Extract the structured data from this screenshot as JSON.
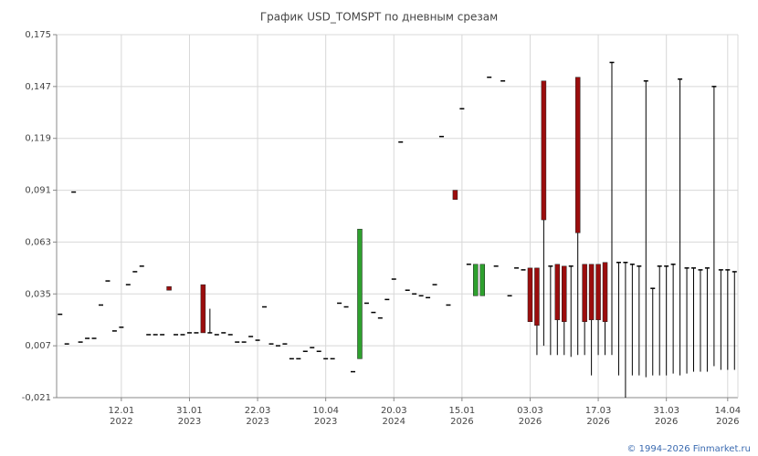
{
  "chart_data": {
    "type": "candlestick",
    "title": "График USD_TOMSPT по дневным срезам",
    "footer": "© 1994–2026 Finmarket.ru",
    "categories": [
      null,
      null,
      null,
      null,
      null,
      null,
      null,
      null,
      null,
      [
        "12.01",
        "2022"
      ],
      null,
      null,
      null,
      null,
      null,
      null,
      null,
      null,
      null,
      [
        "31.01",
        "2023"
      ],
      null,
      null,
      null,
      null,
      null,
      null,
      null,
      null,
      null,
      [
        "22.03",
        "2023"
      ],
      null,
      null,
      null,
      null,
      null,
      null,
      null,
      null,
      null,
      [
        "10.04",
        "2023"
      ],
      null,
      null,
      null,
      null,
      null,
      null,
      null,
      null,
      null,
      [
        "20.03",
        "2024"
      ],
      null,
      null,
      null,
      null,
      null,
      null,
      null,
      null,
      null,
      [
        "15.01",
        "2026"
      ],
      null,
      null,
      null,
      null,
      null,
      null,
      null,
      null,
      null,
      [
        "03.03",
        "2026"
      ],
      null,
      null,
      null,
      null,
      null,
      null,
      null,
      null,
      null,
      [
        "17.03",
        "2026"
      ],
      null,
      null,
      null,
      null,
      null,
      null,
      null,
      null,
      null,
      [
        "31.03",
        "2026"
      ],
      null,
      null,
      null,
      null,
      null,
      null,
      null,
      null,
      [
        "14.04",
        "2026"
      ],
      null
    ],
    "open": [
      0.024,
      0.008,
      0.09,
      0.009,
      0.011,
      0.011,
      0.029,
      0.042,
      0.015,
      0.017,
      0.04,
      0.047,
      0.05,
      0.013,
      0.013,
      0.013,
      0.039,
      0.013,
      0.013,
      0.014,
      0.014,
      0.04,
      0.014,
      0.013,
      0.014,
      0.013,
      0.009,
      0.009,
      0.012,
      0.01,
      0.028,
      0.008,
      0.007,
      0.008,
      0,
      0,
      0.004,
      0.006,
      0.004,
      0,
      0,
      0.03,
      0.028,
      -0.007,
      0,
      0.03,
      0.025,
      0.022,
      0.032,
      0.043,
      0.117,
      0.037,
      0.035,
      0.034,
      0.033,
      0.04,
      0.12,
      0.029,
      0.091,
      0.135,
      0.051,
      0.034,
      0.034,
      0.152,
      0.05,
      0.15,
      0.034,
      0.049,
      0.048,
      0.049,
      0.049,
      0.15,
      0.05,
      0.051,
      0.05,
      0.05,
      0.152,
      0.051,
      0.051,
      0.051,
      0.052,
      0.16,
      0.052,
      0.052,
      0.051,
      0.05,
      0.15,
      0.038,
      0.05,
      0.05,
      0.051,
      0.151,
      0.049,
      0.049,
      0.048,
      0.049,
      0.147,
      0.048,
      0.048,
      0.047
    ],
    "high": [
      0.024,
      0.008,
      0.09,
      0.009,
      0.011,
      0.011,
      0.029,
      0.042,
      0.015,
      0.017,
      0.04,
      0.047,
      0.05,
      0.013,
      0.013,
      0.013,
      0.039,
      0.013,
      0.013,
      0.014,
      0.014,
      0.04,
      0.027,
      0.013,
      0.014,
      0.013,
      0.009,
      0.009,
      0.012,
      0.01,
      0.028,
      0.008,
      0.007,
      0.008,
      0,
      0,
      0.004,
      0.006,
      0.004,
      0,
      0,
      0.03,
      0.028,
      -0.007,
      0.07,
      0.03,
      0.025,
      0.022,
      0.032,
      0.043,
      0.117,
      0.037,
      0.035,
      0.034,
      0.033,
      0.04,
      0.12,
      0.029,
      0.091,
      0.135,
      0.051,
      0.051,
      0.051,
      0.152,
      0.05,
      0.15,
      0.034,
      0.049,
      0.048,
      0.049,
      0.049,
      0.15,
      0.05,
      0.051,
      0.05,
      0.05,
      0.152,
      0.051,
      0.051,
      0.051,
      0.052,
      0.16,
      0.052,
      0.052,
      0.051,
      0.05,
      0.15,
      0.038,
      0.05,
      0.05,
      0.051,
      0.151,
      0.049,
      0.049,
      0.048,
      0.049,
      0.147,
      0.048,
      0.048,
      0.047
    ],
    "low": [
      0.024,
      0.008,
      0.09,
      0.009,
      0.011,
      0.011,
      0.029,
      0.042,
      0.015,
      0.017,
      0.04,
      0.047,
      0.05,
      0.013,
      0.013,
      0.013,
      0.037,
      0.013,
      0.013,
      0.014,
      0.014,
      0.014,
      0.014,
      0.013,
      0.014,
      0.013,
      0.009,
      0.009,
      0.012,
      0.01,
      0.028,
      0.008,
      0.007,
      0.008,
      0,
      0,
      0.004,
      0.006,
      0.004,
      0,
      0,
      0.03,
      0.028,
      -0.007,
      0,
      0.03,
      0.025,
      0.022,
      0.032,
      0.043,
      0.117,
      0.037,
      0.035,
      0.034,
      0.033,
      0.04,
      0.12,
      0.029,
      0.086,
      0.135,
      0.051,
      0.034,
      0.034,
      0.152,
      0.05,
      0.15,
      0.034,
      0.049,
      0.048,
      0.02,
      0.002,
      0.007,
      0.002,
      0.002,
      0.002,
      0.001,
      0.002,
      0.002,
      -0.009,
      0.002,
      0.002,
      0.002,
      -0.009,
      -0.021,
      -0.009,
      -0.009,
      -0.01,
      -0.009,
      -0.009,
      -0.009,
      -0.008,
      -0.009,
      -0.008,
      -0.007,
      -0.007,
      -0.007,
      -0.004,
      -0.006,
      -0.006,
      -0.006
    ],
    "close": [
      0.024,
      0.008,
      0.09,
      0.009,
      0.011,
      0.011,
      0.029,
      0.042,
      0.015,
      0.017,
      0.04,
      0.047,
      0.05,
      0.013,
      0.013,
      0.013,
      0.037,
      0.013,
      0.013,
      0.014,
      0.014,
      0.014,
      0.014,
      0.013,
      0.014,
      0.013,
      0.009,
      0.009,
      0.012,
      0.01,
      0.028,
      0.008,
      0.007,
      0.008,
      0,
      0,
      0.004,
      0.006,
      0.004,
      0,
      0,
      0.03,
      0.028,
      -0.007,
      0.07,
      0.03,
      0.025,
      0.022,
      0.032,
      0.043,
      0.117,
      0.037,
      0.035,
      0.034,
      0.033,
      0.04,
      0.12,
      0.029,
      0.086,
      0.135,
      0.051,
      0.051,
      0.051,
      0.152,
      0.05,
      0.15,
      0.034,
      0.049,
      0.048,
      0.02,
      0.018,
      0.075,
      0.05,
      0.021,
      0.02,
      0.05,
      0.068,
      0.02,
      0.021,
      0.021,
      0.02,
      0.16,
      0.052,
      0.052,
      0.051,
      0.05,
      0.15,
      0.038,
      0.05,
      0.05,
      0.051,
      0.151,
      0.049,
      0.049,
      0.048,
      0.049,
      0.147,
      0.048,
      0.048,
      0.047
    ],
    "up_color": "#2ea02e",
    "down_color": "#9b0d0d",
    "flat_color": "#000000",
    "ylim": [
      -0.021,
      0.175
    ],
    "yticks": [
      {
        "value": -0.021,
        "label": "-0,021"
      },
      {
        "value": 0.007,
        "label": "0,007"
      },
      {
        "value": 0.035,
        "label": "0,035"
      },
      {
        "value": 0.063,
        "label": "0,063"
      },
      {
        "value": 0.091,
        "label": "0,091"
      },
      {
        "value": 0.119,
        "label": "0,119"
      },
      {
        "value": 0.147,
        "label": "0,147"
      },
      {
        "value": 0.175,
        "label": "0,175"
      }
    ],
    "grid": true
  }
}
